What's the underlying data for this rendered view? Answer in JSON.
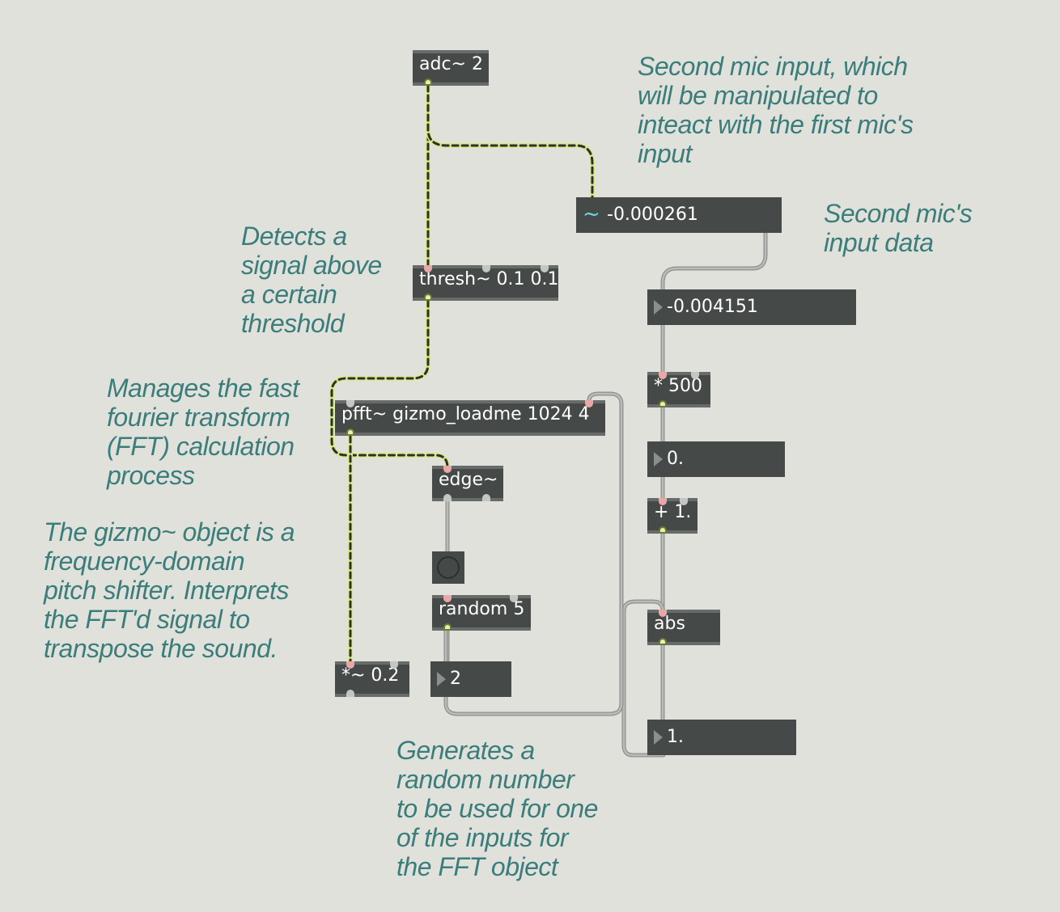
{
  "patcher": {
    "objects": {
      "adc": "adc~ 2",
      "thresh": "thresh~ 0.1 0.1",
      "pfft": "pfft~ gizmo_loadme 1024 4",
      "edge": "edge~",
      "random": "random 5",
      "mul_sig": "*~ 0.2",
      "mul500": "* 500",
      "add1": "+ 1.",
      "abs": "abs"
    },
    "signal_display": {
      "value": "-0.000261",
      "symbol": "~"
    },
    "number_boxes": {
      "mic_data": "-0.004151",
      "scaled": "0.",
      "random_out": "2",
      "abs_out": "1."
    },
    "comments": {
      "second_mic": "Second mic input, which\nwill be manipulated to\ninteact with the first mic's\ninput",
      "second_mic_data": "Second mic's\ninput data",
      "detects": "Detects a\nsignal above\na certain\nthreshold",
      "manages": "Manages the fast\nfourier transform\n(FFT) calculation\nprocess",
      "gizmo": "The gizmo~ object is a\nfrequency-domain\npitch shifter. Interprets\nthe FFT'd signal to\ntranspose the sound.",
      "random": "Generates a\nrandom number\nto be used for one\nof the inputs for\nthe FFT object"
    }
  },
  "colors": {
    "background": "#e1e1dc",
    "object_fill": "#454948",
    "comment_text": "#3a7d7a",
    "signal_cord": "#d8ea8a",
    "control_cord": "#a9aba9"
  }
}
